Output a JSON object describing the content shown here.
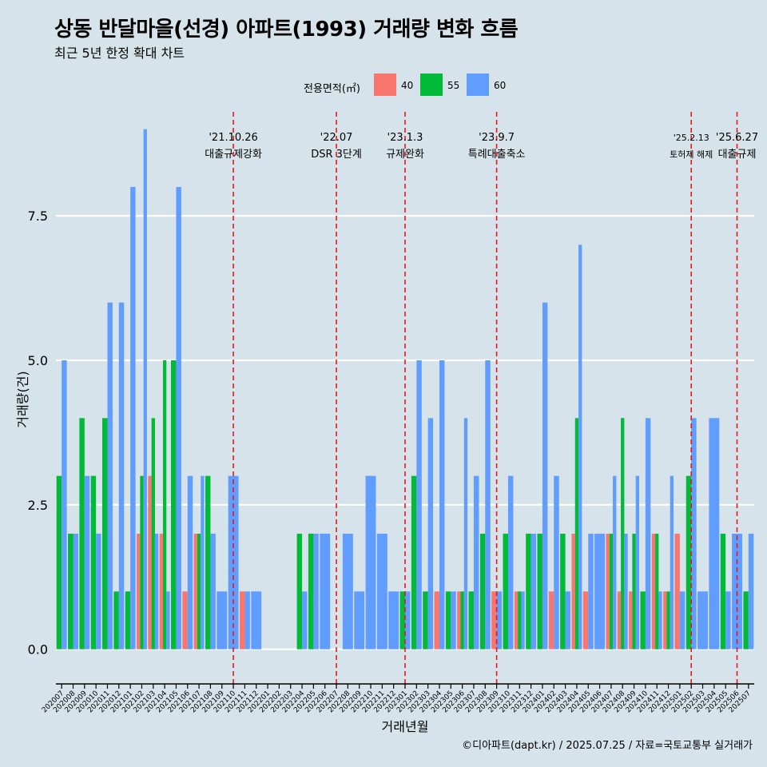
{
  "header": {
    "title": "상동 반달마을(선경) 아파트(1993) 거래량 변화 흐름",
    "subtitle": "최근 5년 한정 확대 차트"
  },
  "legend": {
    "title": "전용면적(㎡)",
    "items": [
      {
        "label": "40",
        "color": "#f8766d"
      },
      {
        "label": "55",
        "color": "#00ba38"
      },
      {
        "label": "60",
        "color": "#619cff"
      }
    ]
  },
  "caption": "©디아파트(dapt.kr) / 2025.07.25 / 자료=국토교통부 실거래가",
  "chart_data": {
    "type": "bar",
    "title": "상동 반달마을(선경) 아파트(1993) 거래량 변화 흐름",
    "subtitle": "최근 5년 한정 확대 차트",
    "xlabel": "거래년월",
    "ylabel": "거래량(건)",
    "ylim": [
      -0.6,
      9.3
    ],
    "yticks": [
      0,
      2.5,
      5,
      7.5
    ],
    "ytick_labels": [
      "0.0",
      "2.5",
      "5.0",
      "7.5"
    ],
    "grid": true,
    "legend_position": "top",
    "categories": [
      "202007",
      "202008",
      "202009",
      "202010",
      "202011",
      "202012",
      "202101",
      "202102",
      "202103",
      "202104",
      "202105",
      "202106",
      "202107",
      "202108",
      "202109",
      "202110",
      "202111",
      "202112",
      "202201",
      "202202",
      "202203",
      "202204",
      "202205",
      "202206",
      "202207",
      "202208",
      "202209",
      "202210",
      "202211",
      "202212",
      "202301",
      "202302",
      "202303",
      "202304",
      "202305",
      "202306",
      "202307",
      "202308",
      "202309",
      "202310",
      "202311",
      "202312",
      "202401",
      "202402",
      "202403",
      "202404",
      "202405",
      "202406",
      "202407",
      "202408",
      "202409",
      "202410",
      "202411",
      "202412",
      "202501",
      "202502",
      "202503",
      "202504",
      "202505",
      "202506",
      "202507"
    ],
    "series": [
      {
        "name": "40",
        "color": "#f8766d",
        "values": [
          0,
          0,
          0,
          0,
          0,
          0,
          0,
          2,
          3,
          2,
          0,
          1,
          2,
          0,
          0,
          0,
          1,
          0,
          0,
          0,
          0,
          0,
          0,
          0,
          0,
          0,
          0,
          0,
          0,
          0,
          0,
          0,
          0,
          1,
          0,
          1,
          0,
          0,
          1,
          0,
          1,
          0,
          0,
          1,
          0,
          2,
          1,
          0,
          2,
          1,
          1,
          0,
          2,
          1,
          2,
          0,
          0,
          0,
          0,
          0,
          0
        ]
      },
      {
        "name": "55",
        "color": "#00ba38",
        "values": [
          3,
          2,
          4,
          3,
          4,
          1,
          1,
          3,
          4,
          5,
          5,
          0,
          2,
          3,
          0,
          0,
          0,
          0,
          0,
          0,
          0,
          2,
          2,
          0,
          0,
          0,
          0,
          0,
          0,
          0,
          1,
          3,
          1,
          0,
          1,
          1,
          1,
          2,
          0,
          2,
          1,
          2,
          2,
          0,
          2,
          4,
          0,
          0,
          2,
          4,
          2,
          1,
          2,
          1,
          0,
          3,
          0,
          0,
          2,
          0,
          1
        ]
      },
      {
        "name": "60",
        "color": "#619cff",
        "values": [
          5,
          2,
          3,
          2,
          6,
          6,
          8,
          9,
          2,
          1,
          8,
          3,
          3,
          2,
          1,
          3,
          1,
          1,
          0,
          0,
          0,
          1,
          2,
          2,
          0,
          2,
          1,
          3,
          2,
          1,
          1,
          5,
          4,
          5,
          1,
          4,
          3,
          5,
          1,
          3,
          1,
          2,
          6,
          3,
          1,
          7,
          2,
          2,
          3,
          2,
          3,
          4,
          1,
          3,
          1,
          4,
          1,
          4,
          1,
          2,
          2
        ]
      }
    ],
    "annotations": [
      {
        "month": "202110",
        "date": "'21.10.26",
        "label": "대출규제강화"
      },
      {
        "month": "202207",
        "date": "'22.07",
        "label": "DSR 3단계"
      },
      {
        "month": "202301",
        "date": "'23.1.3",
        "label": "규제완화"
      },
      {
        "month": "202309",
        "date": "'23.9.7",
        "label": "특례대출축소"
      },
      {
        "month": "202502",
        "date": "'25.2.13",
        "label": "토허제 해제"
      },
      {
        "month": "202506",
        "date": "'25.6.27",
        "label": "대출규제"
      }
    ]
  }
}
